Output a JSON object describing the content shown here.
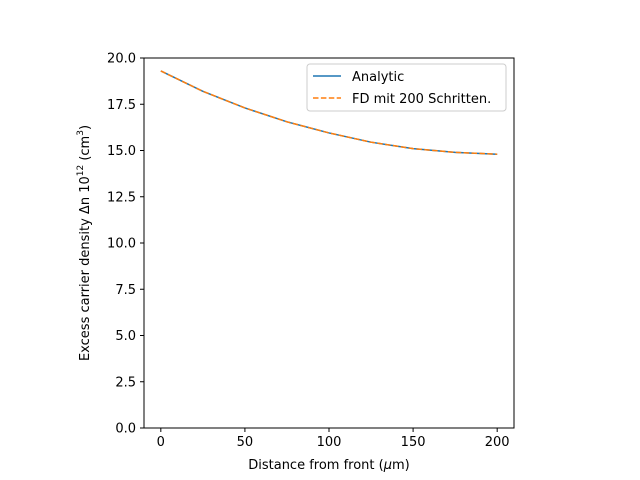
{
  "chart_data": {
    "type": "line",
    "xlabel_text": "Distance from front (",
    "xlabel_mu": "μ",
    "xlabel_unit": "m)",
    "ylabel_text": "Excess carrier density Δn 10",
    "ylabel_exp": "12",
    "ylabel_unit": " (cm",
    "ylabel_unit_exp": "3",
    "ylabel_close": ")",
    "xlim": [
      -10,
      210
    ],
    "ylim": [
      0,
      20
    ],
    "x_ticks": [
      0,
      50,
      100,
      150,
      200
    ],
    "x_tick_labels": [
      "0",
      "50",
      "100",
      "150",
      "200"
    ],
    "y_ticks": [
      0,
      2.5,
      5,
      7.5,
      10,
      12.5,
      15,
      17.5,
      20
    ],
    "y_tick_labels": [
      "0.0",
      "2.5",
      "5.0",
      "7.5",
      "10.0",
      "12.5",
      "15.0",
      "17.5",
      "20.0"
    ],
    "grid": false,
    "legend_position": "top-right",
    "series": [
      {
        "name": "Analytic",
        "color": "#1f77b4",
        "style": "solid",
        "x": [
          0,
          25,
          50,
          75,
          100,
          125,
          150,
          175,
          200
        ],
        "y": [
          19.3,
          18.2,
          17.3,
          16.55,
          15.95,
          15.45,
          15.1,
          14.9,
          14.8
        ]
      },
      {
        "name": "FD mit 200 Schritten.",
        "color": "#ff7f0e",
        "style": "dashed",
        "x": [
          0,
          25,
          50,
          75,
          100,
          125,
          150,
          175,
          200
        ],
        "y": [
          19.3,
          18.2,
          17.3,
          16.55,
          15.95,
          15.45,
          15.1,
          14.9,
          14.8
        ]
      }
    ]
  }
}
